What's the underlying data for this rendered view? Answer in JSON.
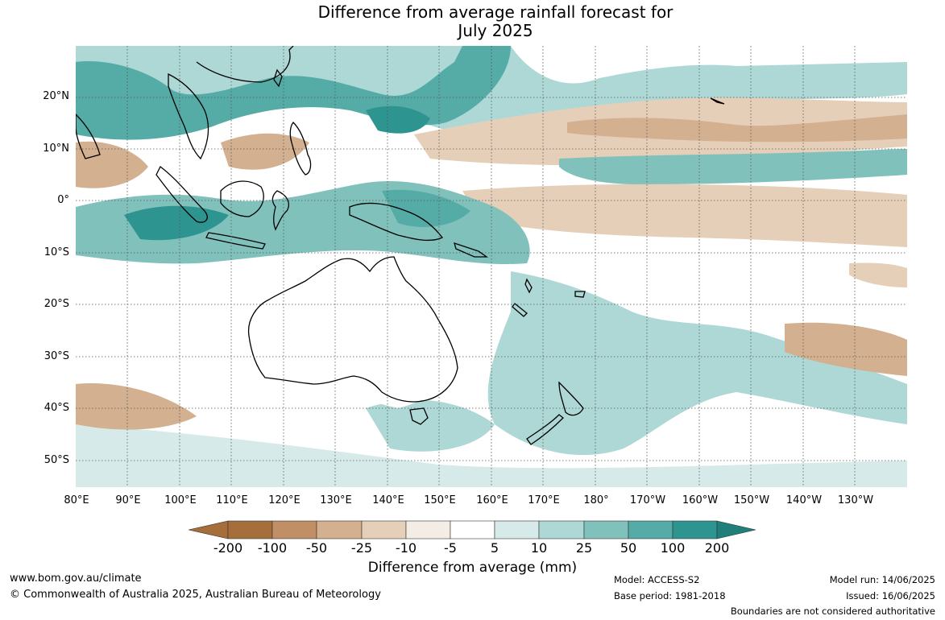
{
  "title": {
    "line1": "Difference from average rainfall forecast for",
    "line2": "July 2025"
  },
  "map": {
    "lat_labels": [
      "20°N",
      "10°N",
      "0°",
      "10°S",
      "20°S",
      "30°S",
      "40°S",
      "50°S"
    ],
    "lon_labels": [
      "80°E",
      "90°E",
      "100°E",
      "110°E",
      "120°E",
      "130°E",
      "140°E",
      "150°E",
      "160°E",
      "170°E",
      "180°",
      "170°W",
      "160°W",
      "150°W",
      "140°W",
      "130°W"
    ],
    "colors": {
      "dry_strong": "#a66e3a",
      "dry_1": "#c08f65",
      "dry_2": "#d3b08f",
      "dry_3": "#e6cfb8",
      "dry_4": "#f3ede5",
      "neutral": "#ffffff",
      "wet_1": "#d6ebe9",
      "wet_2": "#aed8d5",
      "wet_3": "#80c1bc",
      "wet_4": "#55aba6",
      "wet_5": "#2e9490",
      "wet_strong": "#207f7a",
      "coast": "#000000",
      "grid": "#555555"
    }
  },
  "colorbar": {
    "ticks": [
      "-200",
      "-100",
      "-50",
      "-25",
      "-10",
      "-5",
      "5",
      "10",
      "25",
      "50",
      "100",
      "200"
    ],
    "label": "Difference from average (mm)"
  },
  "footer": {
    "website": "www.bom.gov.au/climate",
    "copyright": "© Commonwealth of Australia 2025, Australian Bureau of Meteorology",
    "model": "Model: ACCESS-S2",
    "base_period": "Base period: 1981-2018",
    "model_run": "Model run: 14/06/2025",
    "issued": "Issued: 16/06/2025",
    "disclaimer": "Boundaries are not considered authoritative"
  }
}
